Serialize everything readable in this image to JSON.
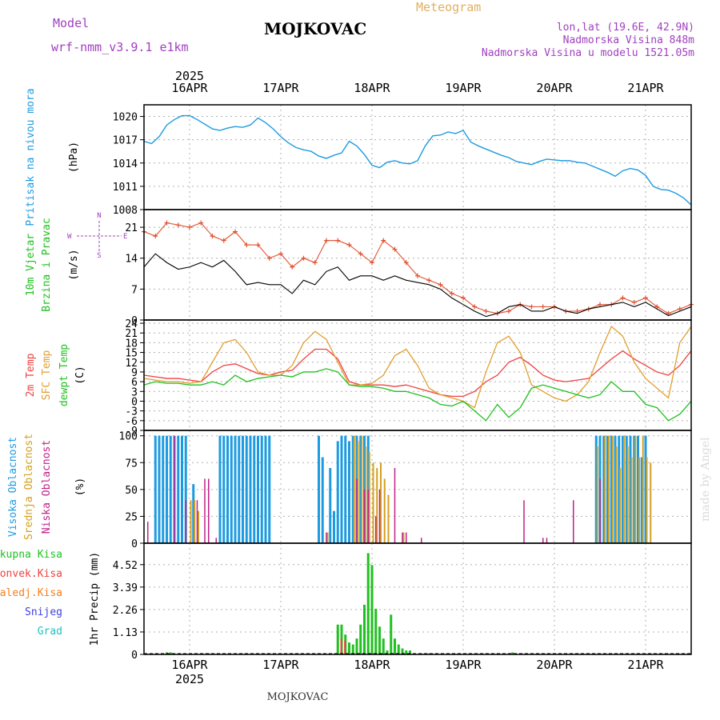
{
  "header": {
    "model_label": "Model",
    "model_name": "wrf-nmm_v3.9.1 e1km",
    "location": "MOJKOVAC",
    "meteogram": "Meteogram",
    "coords": "lon,lat (19.6E, 42.9N)",
    "elevation": "Nadmorska Visina 848m",
    "model_elevation": "Nadmorska Visina u modelu 1521.05m",
    "footer_location": "MOJKOVAC",
    "watermark": "made by Angel"
  },
  "colors": {
    "pressure": "#1e9be0",
    "temp2m": "#f04040",
    "sfc": "#e0a030",
    "dewpt": "#20c020",
    "high_cloud": "#1e9be0",
    "mid_cloud": "#d4a020",
    "low_cloud": "#c0208a",
    "total_precip": "#20c020",
    "conv_precip": "#f04040",
    "freezing": "#f08020",
    "snow": "#4040e0",
    "hail": "#20c0c0",
    "purple_text": "#a040c0",
    "orange_text": "#e0b060"
  },
  "chart_data": [
    {
      "type": "line",
      "panel": "pressure",
      "ylabel_lines": [
        "Pritisak na nivou mora",
        "(hPa)"
      ],
      "top_year": "2025",
      "top_dates": [
        "16APR",
        "17APR",
        "18APR",
        "19APR",
        "20APR",
        "21APR"
      ],
      "date_positions": [
        0,
        24,
        48,
        72,
        96,
        120
      ],
      "xlim": [
        -12,
        132
      ],
      "ylim": [
        1008,
        1021.5
      ],
      "yticks": [
        1008,
        1011,
        1014,
        1017,
        1020
      ],
      "series": [
        {
          "x": [
            -12,
            -10,
            -8,
            -6,
            -4,
            -2,
            0,
            2,
            4,
            6,
            8,
            10,
            12,
            14,
            16,
            18,
            20,
            22,
            24,
            26,
            28,
            30,
            32,
            34,
            36,
            38,
            40,
            42,
            44,
            46,
            48,
            50,
            52,
            54,
            56,
            58,
            60,
            62,
            64,
            66,
            68,
            70,
            72,
            74,
            76,
            78,
            80,
            82,
            84,
            86,
            88,
            90,
            92,
            94,
            96,
            98,
            100,
            102,
            104,
            106,
            108,
            110,
            112,
            114,
            116,
            118,
            120,
            122,
            124,
            126,
            128,
            130,
            132
          ],
          "y": [
            1016.8,
            1016.5,
            1017.4,
            1018.9,
            1019.6,
            1020.1,
            1020.1,
            1019.6,
            1019.0,
            1018.4,
            1018.2,
            1018.5,
            1018.7,
            1018.6,
            1018.9,
            1019.8,
            1019.2,
            1018.4,
            1017.4,
            1016.6,
            1016.0,
            1015.7,
            1015.5,
            1014.9,
            1014.6,
            1015.0,
            1015.3,
            1016.8,
            1016.2,
            1015.1,
            1013.7,
            1013.4,
            1014.1,
            1014.3,
            1014.0,
            1013.9,
            1014.3,
            1016.2,
            1017.5,
            1017.6,
            1018.0,
            1017.8,
            1018.2,
            1016.7,
            1016.2,
            1015.8,
            1015.4,
            1015.0,
            1014.7,
            1014.2,
            1014.0,
            1013.8,
            1014.2,
            1014.5,
            1014.4,
            1014.3,
            1014.3,
            1014.1,
            1014.0,
            1013.6,
            1013.2,
            1012.8,
            1012.3,
            1013.0,
            1013.3,
            1013.1,
            1012.4,
            1011.0,
            1010.6,
            1010.5,
            1010.1,
            1009.5,
            1008.6
          ]
        }
      ]
    },
    {
      "type": "line",
      "panel": "wind",
      "ylabel_lines": [
        "10m Vjetar",
        "Brzina i Pravac",
        "(m/s)"
      ],
      "compass_labels": [
        "N",
        "E",
        "S",
        "W"
      ],
      "xlim": [
        -12,
        132
      ],
      "ylim": [
        0,
        25
      ],
      "yticks": [
        0,
        7,
        14,
        21
      ],
      "series": [
        {
          "name": "gust",
          "x": [
            -12,
            -9,
            -6,
            -3,
            0,
            3,
            6,
            9,
            12,
            15,
            18,
            21,
            24,
            27,
            30,
            33,
            36,
            39,
            42,
            45,
            48,
            51,
            54,
            57,
            60,
            63,
            66,
            69,
            72,
            75,
            78,
            81,
            84,
            87,
            90,
            93,
            96,
            99,
            102,
            105,
            108,
            111,
            114,
            117,
            120,
            123,
            126,
            129,
            132
          ],
          "y": [
            20.0,
            19.0,
            22.0,
            21.5,
            21.0,
            22.0,
            19.0,
            18.0,
            20.0,
            17.0,
            17.0,
            14.0,
            15.0,
            12.0,
            14.0,
            13.0,
            18.0,
            18.0,
            17.0,
            15.0,
            13.0,
            18.0,
            16.0,
            13.0,
            10.0,
            9.0,
            8.0,
            6.0,
            5.0,
            3.0,
            2.0,
            1.5,
            2.0,
            3.5,
            3.0,
            3.0,
            3.0,
            2.0,
            2.0,
            2.5,
            3.5,
            3.5,
            5.0,
            4.0,
            5.0,
            3.0,
            1.5,
            2.5,
            3.5
          ]
        },
        {
          "name": "wind speed",
          "x": [
            -12,
            -9,
            -6,
            -3,
            0,
            3,
            6,
            9,
            12,
            15,
            18,
            21,
            24,
            27,
            30,
            33,
            36,
            39,
            42,
            45,
            48,
            51,
            54,
            57,
            60,
            63,
            66,
            69,
            72,
            75,
            78,
            81,
            84,
            87,
            90,
            93,
            96,
            99,
            102,
            105,
            108,
            111,
            114,
            117,
            120,
            123,
            126,
            129,
            132
          ],
          "y": [
            12.0,
            15.0,
            13.0,
            11.5,
            12.0,
            13.0,
            12.0,
            13.5,
            11.0,
            8.0,
            8.5,
            8.0,
            8.0,
            6.0,
            9.0,
            8.0,
            11.0,
            12.0,
            9.0,
            10.0,
            10.0,
            9.0,
            10.0,
            9.0,
            8.5,
            8.0,
            7.0,
            5.0,
            3.5,
            2.0,
            0.8,
            1.5,
            3.0,
            3.5,
            2.0,
            2.0,
            3.0,
            2.0,
            1.5,
            2.5,
            3.0,
            3.5,
            4.0,
            3.0,
            4.0,
            2.5,
            1.0,
            2.0,
            3.0
          ]
        }
      ]
    },
    {
      "type": "line",
      "panel": "temperature",
      "ylabel_lines": [
        "2m Temp",
        "SFC Temp",
        "dewpt Temp",
        "(C)"
      ],
      "xlim": [
        -12,
        132
      ],
      "ylim": [
        -9,
        25
      ],
      "yticks": [
        -9,
        -6,
        -3,
        0,
        3,
        6,
        9,
        12,
        15,
        18,
        21,
        24
      ],
      "series": [
        {
          "name": "2m Temp",
          "x": [
            -12,
            -9,
            -6,
            -3,
            0,
            3,
            6,
            9,
            12,
            15,
            18,
            21,
            24,
            27,
            30,
            33,
            36,
            39,
            42,
            45,
            48,
            51,
            54,
            57,
            60,
            63,
            66,
            69,
            72,
            75,
            78,
            81,
            84,
            87,
            90,
            93,
            96,
            99,
            102,
            105,
            108,
            111,
            114,
            117,
            120,
            123,
            126,
            129,
            132
          ],
          "y": [
            8.0,
            7.5,
            7.0,
            7.0,
            6.5,
            6.0,
            9.0,
            11.0,
            11.5,
            10.0,
            8.5,
            8.0,
            9.0,
            9.5,
            13.0,
            16.0,
            16.0,
            13.0,
            6.0,
            5.0,
            5.0,
            5.0,
            4.5,
            5.0,
            4.0,
            3.0,
            2.0,
            1.5,
            1.5,
            3.0,
            6.0,
            8.0,
            12.0,
            13.5,
            11.0,
            8.0,
            6.5,
            6.0,
            6.5,
            7.0,
            10.0,
            13.0,
            15.5,
            13.0,
            11.0,
            9.0,
            8.0,
            11.0,
            15.5
          ]
        },
        {
          "name": "SFC Temp",
          "x": [
            -12,
            -9,
            -6,
            -3,
            0,
            3,
            6,
            9,
            12,
            15,
            18,
            21,
            24,
            27,
            30,
            33,
            36,
            39,
            42,
            45,
            48,
            51,
            54,
            57,
            60,
            63,
            66,
            69,
            72,
            75,
            78,
            81,
            84,
            87,
            90,
            93,
            96,
            99,
            102,
            105,
            108,
            111,
            114,
            117,
            120,
            123,
            126,
            129,
            132
          ],
          "y": [
            7.0,
            6.5,
            6.0,
            6.0,
            5.5,
            6.0,
            12.0,
            18.0,
            19.0,
            15.0,
            9.0,
            8.0,
            8.0,
            11.0,
            18.0,
            21.5,
            19.0,
            12.0,
            5.0,
            5.0,
            5.5,
            8.0,
            14.0,
            16.0,
            11.0,
            4.0,
            2.0,
            1.0,
            0.0,
            -2.0,
            9.0,
            18.0,
            20.0,
            15.0,
            5.0,
            3.0,
            1.0,
            0.0,
            2.0,
            6.0,
            15.0,
            23.0,
            20.0,
            12.0,
            7.0,
            4.0,
            1.0,
            18.0,
            23.0
          ]
        },
        {
          "name": "dewpt Temp",
          "x": [
            -12,
            -9,
            -6,
            -3,
            0,
            3,
            6,
            9,
            12,
            15,
            18,
            21,
            24,
            27,
            30,
            33,
            36,
            39,
            42,
            45,
            48,
            51,
            54,
            57,
            60,
            63,
            66,
            69,
            72,
            75,
            78,
            81,
            84,
            87,
            90,
            93,
            96,
            99,
            102,
            105,
            108,
            111,
            114,
            117,
            120,
            123,
            126,
            129,
            132
          ],
          "y": [
            5.0,
            6.0,
            5.5,
            5.5,
            5.0,
            5.0,
            6.0,
            5.0,
            8.0,
            6.0,
            7.0,
            7.5,
            8.0,
            7.5,
            9.0,
            9.0,
            10.0,
            9.0,
            5.0,
            4.5,
            4.5,
            4.0,
            3.0,
            3.0,
            2.0,
            1.0,
            -1.0,
            -1.5,
            0.0,
            -3.0,
            -6.0,
            -1.0,
            -5.0,
            -2.0,
            4.0,
            5.0,
            4.0,
            3.0,
            2.0,
            1.0,
            2.0,
            6.0,
            3.0,
            3.0,
            -1.0,
            -2.0,
            -6.0,
            -4.0,
            0.0
          ]
        }
      ]
    },
    {
      "type": "bar",
      "panel": "clouds",
      "ylabel_lines": [
        "Visoka Oblacnost",
        "Srednja Oblacnost",
        "Niska Oblacnost",
        "(%)"
      ],
      "xlim": [
        -12,
        132
      ],
      "ylim": [
        0,
        105
      ],
      "yticks": [
        0,
        25,
        50,
        75,
        100
      ],
      "series": [
        {
          "name": "Visoka Oblacnost",
          "x": [
            -9,
            -8,
            -7,
            -6,
            -5,
            -4,
            -3,
            -2,
            -1,
            1,
            8,
            9,
            10,
            11,
            12,
            13,
            14,
            15,
            16,
            17,
            18,
            19,
            20,
            21,
            34,
            35,
            37,
            38,
            39,
            40,
            41,
            42,
            43,
            44,
            45,
            46,
            47,
            107,
            108,
            109,
            110,
            111,
            112,
            113,
            114,
            115,
            116,
            117,
            118,
            119,
            120
          ],
          "values": [
            100,
            100,
            100,
            100,
            100,
            100,
            100,
            100,
            100,
            55,
            100,
            100,
            100,
            100,
            100,
            100,
            100,
            100,
            100,
            100,
            100,
            100,
            100,
            100,
            100,
            80,
            70,
            30,
            95,
            100,
            100,
            95,
            100,
            100,
            100,
            100,
            100,
            100,
            100,
            100,
            100,
            100,
            100,
            100,
            100,
            100,
            100,
            100,
            100,
            80,
            100
          ]
        },
        {
          "name": "Srednja Oblacnost",
          "x": [
            0,
            1,
            2,
            36,
            43,
            44,
            45,
            46,
            47,
            48,
            49,
            50,
            51,
            52,
            56,
            107,
            109,
            110,
            111,
            112,
            113,
            114,
            115,
            116,
            117,
            118,
            119,
            120,
            121
          ],
          "values": [
            40,
            40,
            30,
            10,
            100,
            95,
            100,
            90,
            85,
            75,
            70,
            75,
            60,
            45,
            10,
            90,
            100,
            100,
            100,
            90,
            70,
            100,
            90,
            80,
            100,
            80,
            100,
            80,
            75
          ]
        },
        {
          "name": "Niska Oblacnost",
          "x": [
            -11,
            -4,
            -1,
            2,
            4,
            5,
            7,
            36,
            44,
            46,
            47,
            49,
            50,
            54,
            56,
            57,
            61,
            88,
            93,
            94,
            101,
            108
          ],
          "values": [
            20,
            100,
            40,
            40,
            60,
            60,
            5,
            10,
            60,
            50,
            50,
            25,
            50,
            70,
            10,
            10,
            5,
            40,
            5,
            5,
            40,
            60
          ]
        }
      ]
    },
    {
      "type": "bar",
      "panel": "precipitation",
      "ylabel_lines": [
        "1hr Precip (mm)"
      ],
      "legend": [
        "Ukupna Kisa",
        "Konvek.Kisa",
        "Zaledj.Kisa",
        "Snijeg",
        "Grad"
      ],
      "bottom_dates": [
        "16APR",
        "17APR",
        "18APR",
        "19APR",
        "20APR",
        "21APR"
      ],
      "bottom_year": "2025",
      "xlim": [
        -12,
        132
      ],
      "ylim": [
        0,
        5.6
      ],
      "yticks": [
        0,
        1.13,
        2.26,
        3.39,
        4.52
      ],
      "series": [
        {
          "name": "Ukupna Kisa",
          "x": [
            -6,
            -5,
            5,
            6,
            39,
            40,
            41,
            42,
            43,
            44,
            45,
            46,
            47,
            48,
            49,
            50,
            51,
            52,
            53,
            54,
            55,
            56,
            57,
            58,
            61,
            62,
            63,
            85
          ],
          "values": [
            0.1,
            0.1,
            0.05,
            0.05,
            1.5,
            1.5,
            1.0,
            0.6,
            0.5,
            0.8,
            1.5,
            2.5,
            5.1,
            4.5,
            2.3,
            1.4,
            0.8,
            0.2,
            2.0,
            0.8,
            0.5,
            0.3,
            0.2,
            0.2,
            0.05,
            0.05,
            0.05,
            0.1
          ]
        },
        {
          "name": "Konvek.Kisa",
          "x": [
            40,
            41
          ],
          "values": [
            0.8,
            0.7
          ]
        }
      ]
    }
  ]
}
